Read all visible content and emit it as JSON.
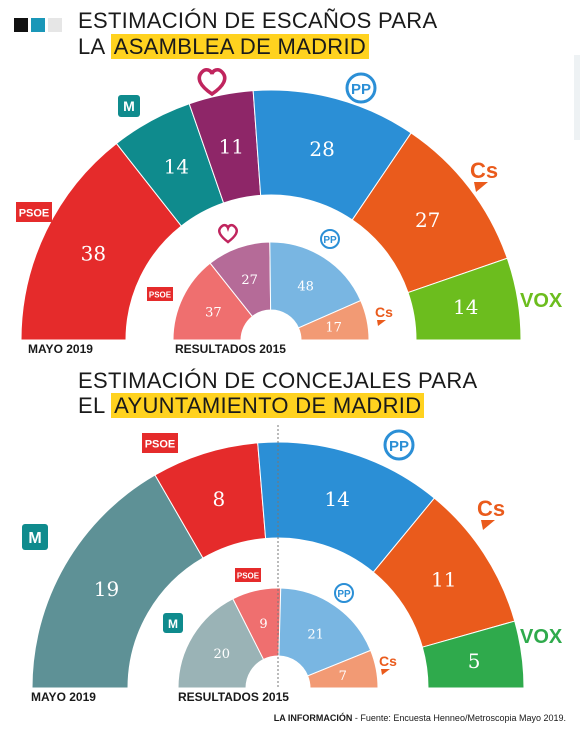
{
  "brand_squares": [
    "#111111",
    "#1a97b8",
    "#e6e6e6"
  ],
  "charts": [
    {
      "title_line1": "ESTIMACIÓN DE ESCAÑOS PARA",
      "title_prefix": "LA",
      "title_highlight": "ASAMBLEA DE MADRID",
      "outer_caption": "MAYO 2019",
      "inner_caption": "RESULTADOS 2015"
    },
    {
      "title_line1": "ESTIMACIÓN DE CONCEJALES PARA",
      "title_prefix": "EL",
      "title_highlight": "AYUNTAMIENTO DE MADRID",
      "outer_caption": "MAYO 2019",
      "inner_caption": "RESULTADOS 2015"
    }
  ],
  "chart_data": [
    {
      "type": "pie",
      "subtype": "semicircle-parliament",
      "title": "ESTIMACIÓN DE ESCAÑOS PARA LA ASAMBLEA DE MADRID",
      "series": [
        {
          "name": "MAYO 2019",
          "slices": [
            {
              "party": "PSOE",
              "value": 38,
              "color": "#e52b2b"
            },
            {
              "party": "Más Madrid",
              "value": 14,
              "color": "#0f8b8d"
            },
            {
              "party": "Podemos",
              "value": 11,
              "color": "#8e2668"
            },
            {
              "party": "PP",
              "value": 28,
              "color": "#2b8fd6"
            },
            {
              "party": "Cs",
              "value": 27,
              "color": "#ea5b1c"
            },
            {
              "party": "VOX",
              "value": 14,
              "color": "#6cbd1e"
            }
          ]
        },
        {
          "name": "RESULTADOS 2015",
          "slices": [
            {
              "party": "PSOE",
              "value": 37,
              "color": "#ef6f6f"
            },
            {
              "party": "Podemos",
              "value": 27,
              "color": "#b56b98"
            },
            {
              "party": "PP",
              "value": 48,
              "color": "#79b6e2"
            },
            {
              "party": "Cs",
              "value": 17,
              "color": "#f29a74"
            }
          ]
        }
      ]
    },
    {
      "type": "pie",
      "subtype": "semicircle-parliament",
      "title": "ESTIMACIÓN DE CONCEJALES PARA EL AYUNTAMIENTO DE MADRID",
      "series": [
        {
          "name": "MAYO 2019",
          "slices": [
            {
              "party": "Más Madrid",
              "value": 19,
              "color": "#5e9196"
            },
            {
              "party": "PSOE",
              "value": 8,
              "color": "#e52b2b"
            },
            {
              "party": "PP",
              "value": 14,
              "color": "#2b8fd6"
            },
            {
              "party": "Cs",
              "value": 11,
              "color": "#ea5b1c"
            },
            {
              "party": "VOX",
              "value": 5,
              "color": "#2faa4c"
            }
          ]
        },
        {
          "name": "RESULTADOS 2015",
          "slices": [
            {
              "party": "Más Madrid",
              "value": 20,
              "color": "#9ab3b6"
            },
            {
              "party": "PSOE",
              "value": 9,
              "color": "#ef6f6f"
            },
            {
              "party": "PP",
              "value": 21,
              "color": "#79b6e2"
            },
            {
              "party": "Cs",
              "value": 7,
              "color": "#f29a74"
            }
          ]
        }
      ]
    }
  ],
  "logos": {
    "psoe": "PSOE",
    "pp": "PP",
    "cs": "Cs",
    "vox": "VOX",
    "mas_madrid": "M"
  },
  "source": {
    "outlet": "LA INFORMACIÓN",
    "text": " - Fuente: Encuesta Henneo/Metroscopia Mayo 2019."
  }
}
